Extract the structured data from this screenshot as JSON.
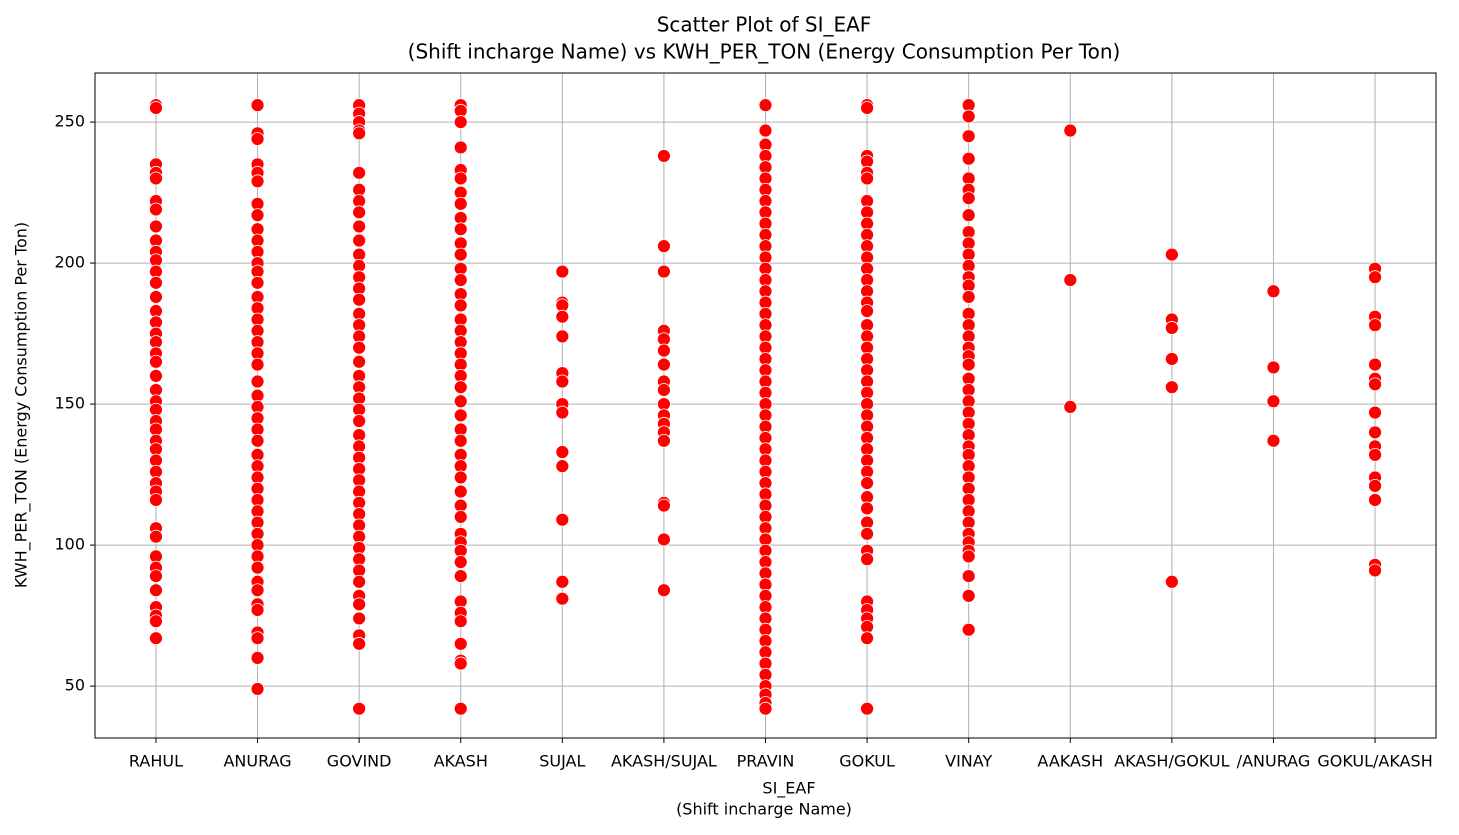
{
  "chart_data": {
    "type": "scatter",
    "title": [
      "Scatter Plot of SI_EAF",
      "(Shift incharge Name) vs KWH_PER_TON (Energy Consumption Per Ton)"
    ],
    "x_label": [
      "SI_EAF",
      "(Shift incharge Name)"
    ],
    "y_label": "KWH_PER_TON (Energy Consumption Per Ton)",
    "categories": [
      "RAHUL",
      "ANURAG",
      "GOVIND",
      "AKASH",
      "SUJAL",
      "AKASH/SUJAL",
      "PRAVIN",
      "GOKUL",
      "VINAY",
      "AAKASH",
      "AKASH/GOKUL",
      "/ANURAG",
      "GOKUL/AKASH"
    ],
    "values": [
      [
        256,
        255,
        235,
        232,
        230,
        222,
        219,
        213,
        208,
        204,
        201,
        197,
        193,
        188,
        183,
        179,
        175,
        172,
        168,
        165,
        160,
        155,
        151,
        148,
        144,
        141,
        137,
        134,
        130,
        126,
        122,
        119,
        116,
        106,
        103,
        96,
        92,
        89,
        84,
        78,
        75,
        73,
        67
      ],
      [
        256,
        246,
        244,
        235,
        232,
        229,
        221,
        217,
        212,
        208,
        204,
        200,
        197,
        193,
        188,
        184,
        180,
        176,
        172,
        168,
        164,
        158,
        153,
        149,
        145,
        141,
        137,
        132,
        128,
        124,
        120,
        116,
        112,
        108,
        104,
        100,
        96,
        92,
        87,
        84,
        79,
        77,
        69,
        67,
        60,
        49
      ],
      [
        256,
        253,
        250,
        247,
        246,
        232,
        226,
        222,
        218,
        213,
        208,
        203,
        199,
        195,
        191,
        187,
        182,
        178,
        174,
        170,
        165,
        160,
        156,
        152,
        148,
        144,
        139,
        135,
        131,
        127,
        123,
        119,
        115,
        111,
        107,
        103,
        99,
        95,
        91,
        87,
        82,
        79,
        74,
        68,
        65,
        42
      ],
      [
        256,
        254,
        250,
        241,
        233,
        230,
        225,
        221,
        216,
        212,
        207,
        203,
        198,
        194,
        189,
        185,
        180,
        176,
        172,
        168,
        164,
        160,
        156,
        151,
        146,
        141,
        137,
        132,
        128,
        124,
        119,
        114,
        110,
        104,
        101,
        98,
        94,
        89,
        80,
        76,
        73,
        65,
        59,
        58,
        42
      ],
      [
        197,
        186,
        185,
        181,
        174,
        161,
        158,
        150,
        147,
        133,
        128,
        109,
        87,
        81
      ],
      [
        238,
        206,
        197,
        176,
        173,
        169,
        164,
        158,
        155,
        150,
        146,
        143,
        140,
        137,
        115,
        114,
        102,
        84
      ],
      [
        256,
        247,
        242,
        238,
        234,
        230,
        226,
        222,
        218,
        214,
        210,
        206,
        202,
        198,
        194,
        190,
        186,
        182,
        178,
        174,
        170,
        166,
        162,
        158,
        154,
        150,
        146,
        142,
        138,
        134,
        130,
        126,
        122,
        118,
        114,
        110,
        106,
        102,
        98,
        94,
        90,
        86,
        82,
        78,
        74,
        70,
        66,
        62,
        58,
        54,
        50,
        47,
        44,
        42
      ],
      [
        256,
        255,
        238,
        236,
        232,
        230,
        222,
        218,
        214,
        210,
        206,
        202,
        198,
        194,
        190,
        186,
        183,
        178,
        174,
        170,
        166,
        162,
        158,
        154,
        150,
        146,
        142,
        138,
        134,
        130,
        126,
        122,
        117,
        113,
        108,
        104,
        98,
        95,
        80,
        77,
        74,
        71,
        67,
        42
      ],
      [
        256,
        252,
        245,
        237,
        230,
        226,
        223,
        217,
        211,
        207,
        203,
        199,
        195,
        192,
        188,
        182,
        178,
        174,
        170,
        167,
        164,
        159,
        155,
        151,
        147,
        143,
        139,
        135,
        132,
        128,
        124,
        120,
        116,
        112,
        108,
        104,
        101,
        98,
        96,
        89,
        82,
        70
      ],
      [
        247,
        194,
        149
      ],
      [
        203,
        180,
        177,
        166,
        156,
        87
      ],
      [
        190,
        163,
        151,
        137
      ],
      [
        198,
        195,
        181,
        178,
        164,
        159,
        157,
        147,
        140,
        135,
        132,
        124,
        121,
        116,
        93,
        91
      ]
    ],
    "color": "red",
    "ylim": [
      31.6,
      267.4
    ],
    "yticks": [
      50,
      100,
      150,
      200,
      250
    ],
    "grid": true
  }
}
